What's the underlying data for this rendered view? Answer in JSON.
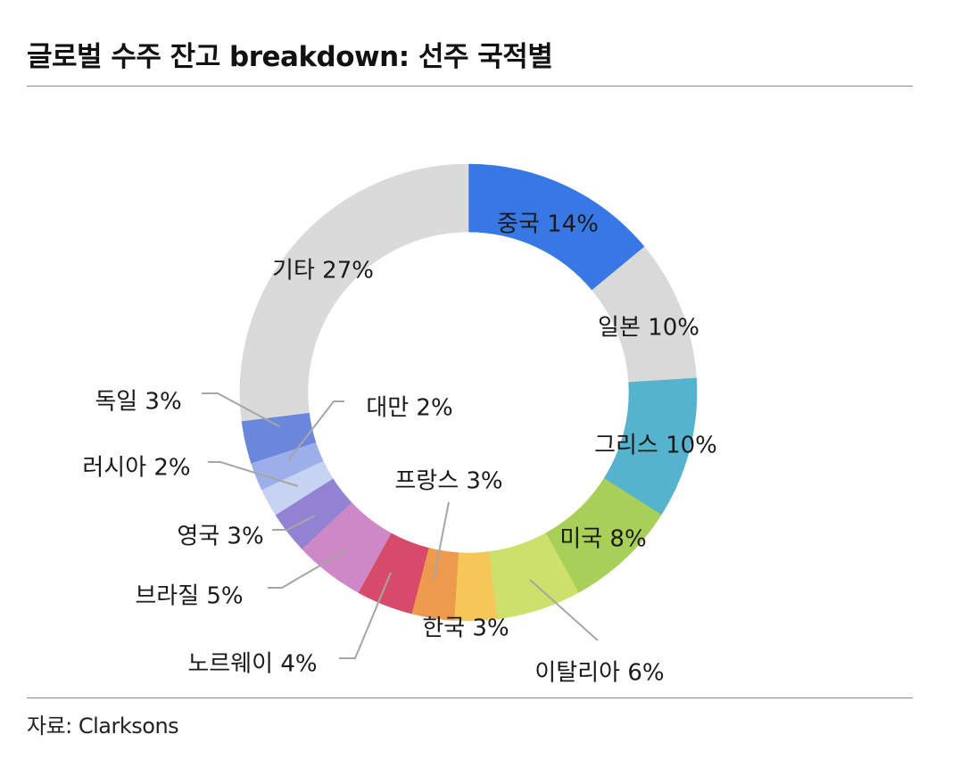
{
  "title": "글로벌 수주 잔고 breakdown: 선주 국적별",
  "source": "자료: Clarksons",
  "chart_data": {
    "type": "pie",
    "title": "글로벌 수주 잔고 breakdown: 선주 국적별",
    "unit": "%",
    "slices": [
      {
        "label": "중국",
        "value": 14,
        "display": "중국 14%",
        "color": "#3778e6"
      },
      {
        "label": "일본",
        "value": 10,
        "display": "일본 10%",
        "color": "#d9d9d9"
      },
      {
        "label": "그리스",
        "value": 10,
        "display": "그리스 10%",
        "color": "#55b3cd"
      },
      {
        "label": "미국",
        "value": 8,
        "display": "미국 8%",
        "color": "#a8cf57"
      },
      {
        "label": "이탈리아",
        "value": 6,
        "display": "이탈리아 6%",
        "color": "#cce06b"
      },
      {
        "label": "한국",
        "value": 3,
        "display": "한국 3%",
        "color": "#f6c658"
      },
      {
        "label": "프랑스",
        "value": 3,
        "display": "프랑스 3%",
        "color": "#ed9a4f"
      },
      {
        "label": "노르웨이",
        "value": 4,
        "display": "노르웨이 4%",
        "color": "#d84a6a"
      },
      {
        "label": "브라질",
        "value": 5,
        "display": "브라질 5%",
        "color": "#ce88c5"
      },
      {
        "label": "영국",
        "value": 3,
        "display": "영국 3%",
        "color": "#9283d2"
      },
      {
        "label": "러시아",
        "value": 2,
        "display": "러시아 2%",
        "color": "#c7d3f3"
      },
      {
        "label": "대만",
        "value": 2,
        "display": "대만 2%",
        "color": "#9dafeb"
      },
      {
        "label": "독일",
        "value": 3,
        "display": "독일 3%",
        "color": "#6b87dc"
      },
      {
        "label": "기타",
        "value": 27,
        "display": "기타 27%",
        "color": "#dadada"
      }
    ]
  }
}
